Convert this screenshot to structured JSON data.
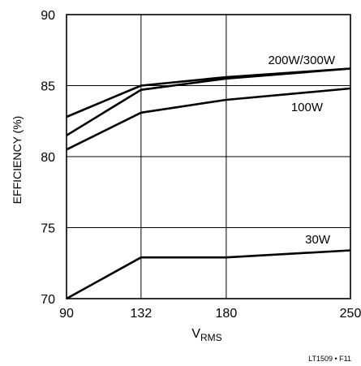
{
  "chart_data": {
    "type": "line",
    "xlabel": "V",
    "xlabel_sub": "RMS",
    "ylabel": "EFFICIENCY (%)",
    "xlim": [
      90,
      250
    ],
    "ylim": [
      70,
      90
    ],
    "x_ticks": [
      90,
      132,
      180,
      250
    ],
    "y_ticks": [
      70,
      75,
      80,
      85,
      90
    ],
    "grid": true,
    "series": [
      {
        "name": "200W/300W",
        "x": [
          90,
          132,
          180,
          250
        ],
        "y": [
          82.8,
          85.0,
          85.6,
          86.2
        ]
      },
      {
        "name": "",
        "x": [
          90,
          132,
          180,
          250
        ],
        "y": [
          81.5,
          84.7,
          85.5,
          86.2
        ]
      },
      {
        "name": "100W",
        "x": [
          90,
          132,
          180,
          250
        ],
        "y": [
          80.5,
          83.1,
          84.0,
          84.8
        ]
      },
      {
        "name": "30W",
        "x": [
          90,
          132,
          180,
          250
        ],
        "y": [
          70.0,
          72.9,
          72.9,
          73.4
        ]
      }
    ],
    "annotation": "LT1509 • F11"
  }
}
